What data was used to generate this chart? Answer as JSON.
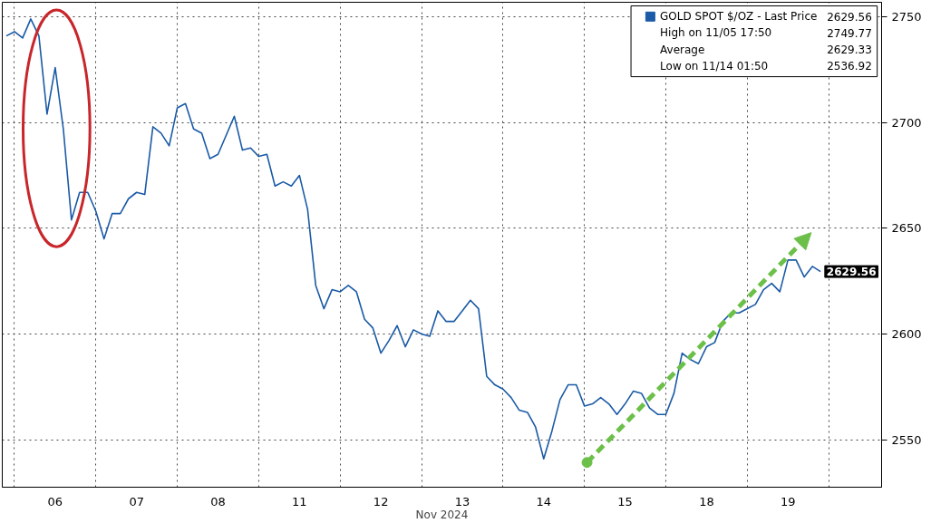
{
  "chart_data": {
    "type": "line",
    "xlabel": "Nov 2024",
    "categories": [
      null,
      null,
      null,
      null,
      null,
      null,
      "06",
      null,
      null,
      null,
      null,
      null,
      null,
      null,
      null,
      null,
      "07",
      null,
      null,
      null,
      null,
      null,
      null,
      null,
      null,
      null,
      "08",
      null,
      null,
      null,
      null,
      null,
      null,
      null,
      null,
      null,
      "11",
      null,
      null,
      null,
      null,
      null,
      null,
      null,
      null,
      null,
      "12",
      null,
      null,
      null,
      null,
      null,
      null,
      null,
      null,
      null,
      "13",
      null,
      null,
      null,
      null,
      null,
      null,
      null,
      null,
      null,
      "14",
      null,
      null,
      null,
      null,
      null,
      null,
      null,
      null,
      null,
      "15",
      null,
      null,
      null,
      null,
      null,
      null,
      null,
      null,
      null,
      "18",
      null,
      null,
      null,
      null,
      null,
      null,
      null,
      null,
      null,
      "19",
      null,
      null,
      null,
      null
    ],
    "series": [
      {
        "name": "GOLD SPOT $/OZ - Last Price",
        "color": "#1a5aa6",
        "values": [
          2741,
          2743,
          2740,
          2749,
          2741,
          2704,
          2726,
          2697,
          2654,
          2667,
          2667,
          2658,
          2645,
          2657,
          2657,
          2664,
          2667,
          2666,
          2698,
          2695,
          2689,
          2707,
          2709,
          2697,
          2695,
          2683,
          2685,
          2694,
          2703,
          2687,
          2688,
          2684,
          2685,
          2670,
          2672,
          2670,
          2675,
          2659,
          2623,
          2612,
          2621,
          2620,
          2623,
          2620,
          2607,
          2603,
          2591,
          2597,
          2604,
          2594,
          2602,
          2600,
          2599,
          2611,
          2606,
          2606,
          2611,
          2616,
          2612,
          2580,
          2576,
          2574,
          2570,
          2564,
          2563,
          2556,
          2541,
          2554,
          2569,
          2576,
          2576,
          2566,
          2567,
          2570,
          2567,
          2562,
          2567,
          2573,
          2572,
          2565,
          2562,
          2562,
          2572,
          2591,
          2588,
          2586,
          2594,
          2596,
          2606,
          2610,
          2610,
          2612,
          2614,
          2621,
          2624,
          2620,
          2635,
          2635,
          2627,
          2632,
          2629.56
        ]
      }
    ],
    "ylim": [
      2527.6,
      2756.9
    ],
    "yticks": [
      2550,
      2600,
      2650,
      2700,
      2750
    ],
    "grid": true,
    "legend": "top right",
    "line_style": "solid",
    "annotations": [
      "2629.56",
      "2629.56",
      "High on 11/05 17:50",
      "2749.77",
      "Average",
      "2629.33",
      "Low on 11/14 01:50",
      "2536.92"
    ]
  }
}
